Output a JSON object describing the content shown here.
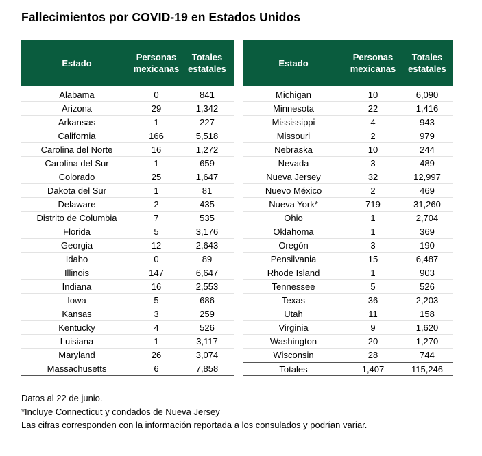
{
  "title": "Fallecimientos por COVID-19 en Estados Unidos",
  "headers": {
    "estado": "Estado",
    "personas": [
      "Personas",
      "mexicanas"
    ],
    "totales": [
      "Totales",
      "estatales"
    ]
  },
  "left_rows": [
    [
      "Alabama",
      "0",
      "841"
    ],
    [
      "Arizona",
      "29",
      "1,342"
    ],
    [
      "Arkansas",
      "1",
      "227"
    ],
    [
      "California",
      "166",
      "5,518"
    ],
    [
      "Carolina del Norte",
      "16",
      "1,272"
    ],
    [
      "Carolina del Sur",
      "1",
      "659"
    ],
    [
      "Colorado",
      "25",
      "1,647"
    ],
    [
      "Dakota del Sur",
      "1",
      "81"
    ],
    [
      "Delaware",
      "2",
      "435"
    ],
    [
      "Distrito de Columbia",
      "7",
      "535"
    ],
    [
      "Florida",
      "5",
      "3,176"
    ],
    [
      "Georgia",
      "12",
      "2,643"
    ],
    [
      "Idaho",
      "0",
      "89"
    ],
    [
      "Illinois",
      "147",
      "6,647"
    ],
    [
      "Indiana",
      "16",
      "2,553"
    ],
    [
      "Iowa",
      "5",
      "686"
    ],
    [
      "Kansas",
      "3",
      "259"
    ],
    [
      "Kentucky",
      "4",
      "526"
    ],
    [
      "Luisiana",
      "1",
      "3,117"
    ],
    [
      "Maryland",
      "26",
      "3,074"
    ],
    [
      "Massachusetts",
      "6",
      "7,858"
    ]
  ],
  "right_rows": [
    [
      "Michigan",
      "10",
      "6,090"
    ],
    [
      "Minnesota",
      "22",
      "1,416"
    ],
    [
      "Mississippi",
      "4",
      "943"
    ],
    [
      "Missouri",
      "2",
      "979"
    ],
    [
      "Nebraska",
      "10",
      "244"
    ],
    [
      "Nevada",
      "3",
      "489"
    ],
    [
      "Nueva Jersey",
      "32",
      "12,997"
    ],
    [
      "Nuevo México",
      "2",
      "469"
    ],
    [
      "Nueva York*",
      "719",
      "31,260"
    ],
    [
      "Ohio",
      "1",
      "2,704"
    ],
    [
      "Oklahoma",
      "1",
      "369"
    ],
    [
      "Oregón",
      "3",
      "190"
    ],
    [
      "Pensilvania",
      "15",
      "6,487"
    ],
    [
      "Rhode Island",
      "1",
      "903"
    ],
    [
      "Tennessee",
      "5",
      "526"
    ],
    [
      "Texas",
      "36",
      "2,203"
    ],
    [
      "Utah",
      "11",
      "158"
    ],
    [
      "Virginia",
      "9",
      "1,620"
    ],
    [
      "Washington",
      "20",
      "1,270"
    ],
    [
      "Wisconsin",
      "28",
      "744"
    ]
  ],
  "total_row": [
    "Totales",
    "1,407",
    "115,246"
  ],
  "notes": [
    "Datos al 22 de junio.",
    "*Incluye Connecticut y condados de Nueva Jersey",
    "Las cifras corresponden con la información reportada a los consulados y podrían variar."
  ],
  "colors": {
    "header_bg": "#0a5c3e",
    "header_text": "#ffffff"
  }
}
